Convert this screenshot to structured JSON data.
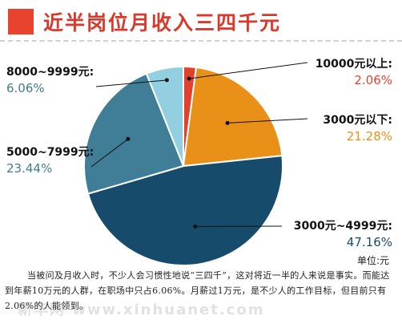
{
  "header": {
    "title": "近半岗位月收入三四千元"
  },
  "chart_data": {
    "type": "pie",
    "slices": [
      {
        "name": "10000元以上:",
        "value": 2.06,
        "label": "2.06%",
        "color": "#e0422e"
      },
      {
        "name": "3000元以下:",
        "value": 21.28,
        "label": "21.28%",
        "color": "#e99018"
      },
      {
        "name": "3000元~4999元:",
        "value": 47.16,
        "label": "47.16%",
        "color": "#174b6c"
      },
      {
        "name": "5000~7999元:",
        "value": 23.44,
        "label": "23.44%",
        "color": "#3f7e96"
      },
      {
        "name": "8000~9999元:",
        "value": 6.06,
        "label": "6.06%",
        "color": "#92cfe0"
      }
    ],
    "unit": "单位:元"
  },
  "caption": "当被问及月收入时，不少人会习惯性地说“三四千”，这对将近一半的人来说是事实。而能达到年薪10万元的人群，在职场中只占6.06%。月薪过1万元，是不少人的工作目标，但目前只有2.06%的人能领到。",
  "watermark": "新华网 www.xinhuanet.com"
}
